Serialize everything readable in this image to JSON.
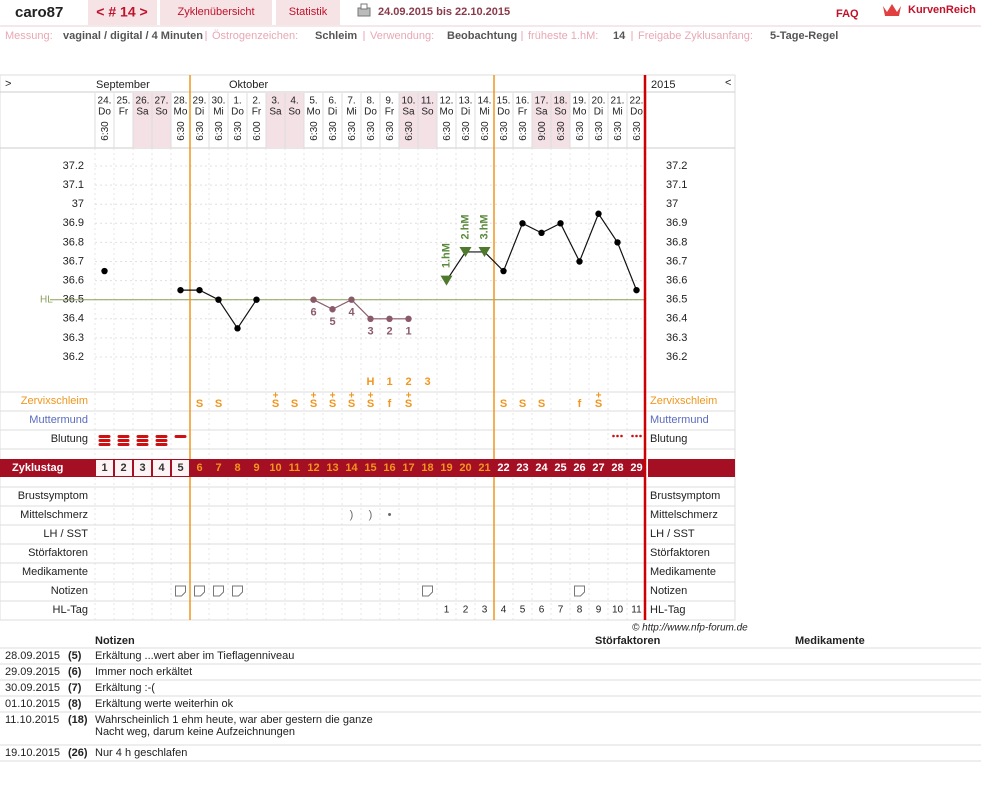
{
  "header": {
    "user": "caro87",
    "cycle_nav": "< # 14 >",
    "tabs": [
      "Zyklenübersicht",
      "Statistik"
    ],
    "date_range": "24.09.2015 bis 22.10.2015",
    "faq": "FAQ",
    "brand": "KurvenReich"
  },
  "settings": [
    {
      "label": "Messung:",
      "value": "vaginal / digital / 4 Minuten"
    },
    {
      "label": "Östrogenzeichen:",
      "value": "Schleim"
    },
    {
      "label": "Verwendung:",
      "value": "Beobachtung"
    },
    {
      "label": "früheste 1.hM:",
      "value": "14"
    },
    {
      "label": "Freigabe Zyklusanfang:",
      "value": "5-Tage-Regel"
    }
  ],
  "chart": {
    "left_toggle": ">",
    "right_toggle": "<",
    "year": "2015",
    "months": [
      "September",
      "Oktober"
    ],
    "dates": [
      "24.",
      "25.",
      "26.",
      "27.",
      "28.",
      "29.",
      "30.",
      "1.",
      "2.",
      "3.",
      "4.",
      "5.",
      "6.",
      "7.",
      "8.",
      "9.",
      "10.",
      "11.",
      "12.",
      "13.",
      "14.",
      "15.",
      "16.",
      "17.",
      "18.",
      "19.",
      "20.",
      "21.",
      "22."
    ],
    "weekdays": [
      "Do",
      "Fr",
      "Sa",
      "So",
      "Mo",
      "Di",
      "Mi",
      "Do",
      "Fr",
      "Sa",
      "So",
      "Mo",
      "Di",
      "Mi",
      "Do",
      "Fr",
      "Sa",
      "So",
      "Mo",
      "Di",
      "Mi",
      "Do",
      "Fr",
      "Sa",
      "So",
      "Mo",
      "Di",
      "Mi",
      "Do"
    ],
    "times": [
      "6:30",
      null,
      null,
      null,
      "6:30",
      "6:30",
      "6:30",
      "6:30",
      "6:00",
      null,
      null,
      "6:30",
      "6:30",
      "6:30",
      "6:30",
      "6:30",
      "6:30",
      null,
      "6:30",
      "6:30",
      "6:30",
      "6:30",
      "6:30",
      "9:00",
      "6:30",
      "6:30",
      "6:30",
      "6:30",
      "6:30"
    ],
    "temperatures": [
      36.65,
      null,
      null,
      null,
      36.55,
      36.55,
      36.5,
      36.35,
      36.5,
      null,
      null,
      36.5,
      36.45,
      36.5,
      36.4,
      36.4,
      36.4,
      null,
      36.6,
      36.75,
      36.75,
      36.65,
      36.9,
      36.85,
      36.9,
      36.7,
      36.95,
      36.8,
      36.55
    ],
    "yticks": [
      37.2,
      37.1,
      37,
      36.9,
      36.8,
      36.7,
      36.6,
      36.5,
      36.4,
      36.3,
      36.2
    ],
    "hl_label": "HL",
    "hl_value": 36.5,
    "excluded_counts": [
      null,
      null,
      null,
      null,
      null,
      null,
      null,
      null,
      null,
      null,
      null,
      6,
      5,
      4,
      3,
      2,
      1,
      null,
      null,
      null,
      null,
      null,
      null,
      null,
      null,
      null,
      null,
      null,
      null
    ],
    "hm_labels": [
      null,
      null,
      null,
      null,
      null,
      null,
      null,
      null,
      null,
      null,
      null,
      null,
      null,
      null,
      null,
      null,
      null,
      null,
      "1.hM",
      "2.hM",
      "3.hM",
      null,
      null,
      null,
      null,
      null,
      null,
      null,
      null
    ],
    "peak_marks": [
      null,
      null,
      null,
      null,
      null,
      null,
      null,
      null,
      null,
      null,
      null,
      null,
      null,
      null,
      "H",
      "1",
      "2",
      "3",
      null,
      null,
      null,
      null,
      null,
      null,
      null,
      null,
      null,
      null,
      null
    ],
    "cervical": [
      null,
      null,
      null,
      null,
      null,
      "S",
      "S",
      null,
      null,
      "S",
      "S",
      "S",
      "S",
      "S",
      "S",
      "f",
      "S",
      null,
      null,
      null,
      null,
      "S",
      "S",
      "S",
      null,
      "f",
      "S",
      null,
      null
    ],
    "cervical_plus": [
      null,
      null,
      null,
      null,
      null,
      null,
      null,
      null,
      null,
      "+",
      null,
      "+",
      "+",
      "+",
      "+",
      null,
      "+",
      null,
      null,
      null,
      null,
      null,
      null,
      null,
      null,
      null,
      "+",
      null,
      null
    ],
    "cycle_days": [
      1,
      2,
      3,
      4,
      5,
      6,
      7,
      8,
      9,
      10,
      11,
      12,
      13,
      14,
      15,
      16,
      17,
      18,
      19,
      20,
      21,
      22,
      23,
      24,
      25,
      26,
      27,
      28,
      29
    ],
    "mittelschmerz": [
      null,
      null,
      null,
      null,
      null,
      null,
      null,
      null,
      null,
      null,
      null,
      null,
      null,
      ")",
      ")",
      "•",
      null,
      null,
      null,
      null,
      null,
      null,
      null,
      null,
      null,
      null,
      null,
      null,
      null
    ],
    "hl_days": [
      null,
      null,
      null,
      null,
      null,
      null,
      null,
      null,
      null,
      null,
      null,
      null,
      null,
      null,
      null,
      null,
      null,
      null,
      1,
      2,
      3,
      4,
      5,
      6,
      7,
      8,
      9,
      10,
      11
    ],
    "rows": [
      "Zervixschleim",
      "Muttermund",
      "Blutung",
      "Zyklustag",
      "Brustsymptom",
      "Mittelschmerz",
      "LH / SST",
      "Störfaktoren",
      "Medikamente",
      "Notizen",
      "HL-Tag"
    ]
  },
  "credit": "© http://www.nfp-forum.de",
  "notes": {
    "headers": [
      "Notizen",
      "Störfaktoren",
      "Medikamente"
    ],
    "rows": [
      [
        "28.09.2015",
        "(5)",
        [
          "Erkältung ...wert aber im Tieflagenniveau"
        ]
      ],
      [
        "29.09.2015",
        "(6)",
        [
          "Immer noch erkältet"
        ]
      ],
      [
        "30.09.2015",
        "(7)",
        [
          "Erkältung :-("
        ]
      ],
      [
        "01.10.2015",
        "(8)",
        [
          "Erkältung werte weiterhin ok"
        ]
      ],
      [
        "11.10.2015",
        "(18)",
        [
          "Wahrscheinlich 1 ehm heute, war aber gestern die ganze",
          "Nacht weg, darum keine Aufzeichnungen"
        ]
      ],
      [
        "19.10.2015",
        "(26)",
        [
          "Nur 4 h geschlafen"
        ]
      ]
    ]
  }
}
